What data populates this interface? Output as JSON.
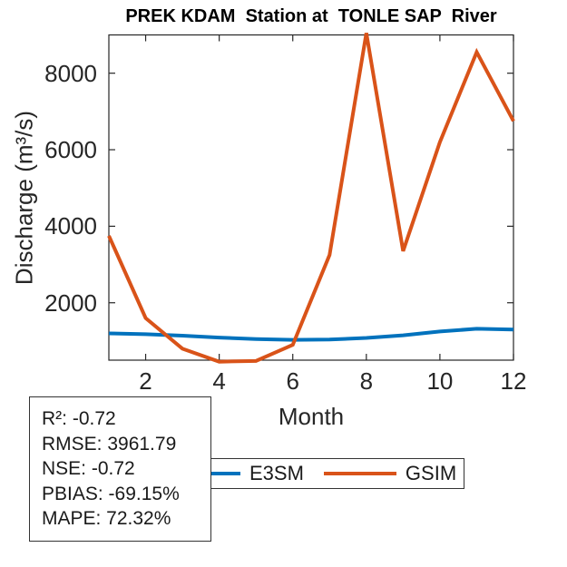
{
  "chart_data": {
    "type": "line",
    "title": "PREK KDAM  Station at  TONLE SAP  River",
    "xlabel": "Month",
    "ylabel": "Discharge (m³/s)",
    "x": [
      1,
      2,
      3,
      4,
      5,
      6,
      7,
      8,
      9,
      10,
      11,
      12
    ],
    "series": [
      {
        "name": "E3SM",
        "color": "#0072BD",
        "values": [
          1200,
          1180,
          1140,
          1090,
          1050,
          1030,
          1040,
          1080,
          1150,
          1250,
          1320,
          1300
        ]
      },
      {
        "name": "GSIM",
        "color": "#D95319",
        "values": [
          3750,
          1600,
          800,
          460,
          480,
          900,
          3250,
          9050,
          3350,
          6200,
          8550,
          6750
        ]
      }
    ],
    "xlim": [
      1,
      12
    ],
    "ylim": [
      500,
      9000
    ],
    "xticks": [
      2,
      4,
      6,
      8,
      10,
      12
    ],
    "yticks": [
      2000,
      4000,
      6000,
      8000
    ],
    "grid": false,
    "legend_position": "below-axis",
    "axis_color": "#262626",
    "line_width": 4
  },
  "legend": {
    "entries": [
      {
        "label": "E3SM",
        "color": "#0072BD"
      },
      {
        "label": "GSIM",
        "color": "#D95319"
      }
    ]
  },
  "stats_box": {
    "lines": [
      "R²: -0.72",
      "RMSE: 3961.79",
      "NSE: -0.72",
      "PBIAS: -69.15%",
      "MAPE: 72.32%"
    ]
  }
}
